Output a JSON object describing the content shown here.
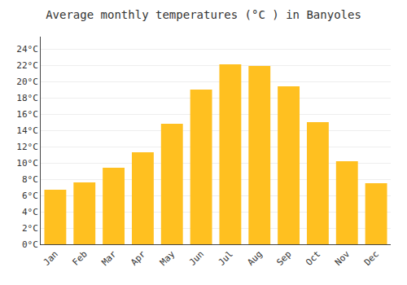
{
  "chart_data": {
    "type": "bar",
    "title": "Average monthly temperatures (°C ) in Banyoles",
    "categories": [
      "Jan",
      "Feb",
      "Mar",
      "Apr",
      "May",
      "Jun",
      "Jul",
      "Aug",
      "Sep",
      "Oct",
      "Nov",
      "Dec"
    ],
    "values": [
      6.7,
      7.6,
      9.4,
      11.3,
      14.8,
      19.0,
      22.1,
      21.9,
      19.4,
      15.0,
      10.2,
      7.5
    ],
    "color": "#FFC020",
    "ylim": [
      0,
      25.5
    ],
    "yticks": [
      {
        "value": 0,
        "label": "0°C"
      },
      {
        "value": 2,
        "label": "2°C"
      },
      {
        "value": 4,
        "label": "4°C"
      },
      {
        "value": 6,
        "label": "6°C"
      },
      {
        "value": 8,
        "label": "8°C"
      },
      {
        "value": 10,
        "label": "10°C"
      },
      {
        "value": 12,
        "label": "12°C"
      },
      {
        "value": 14,
        "label": "14°C"
      },
      {
        "value": 16,
        "label": "16°C"
      },
      {
        "value": 18,
        "label": "18°C"
      },
      {
        "value": 20,
        "label": "20°C"
      },
      {
        "value": 22,
        "label": "22°C"
      },
      {
        "value": 24,
        "label": "24°C"
      }
    ],
    "grid": true
  }
}
